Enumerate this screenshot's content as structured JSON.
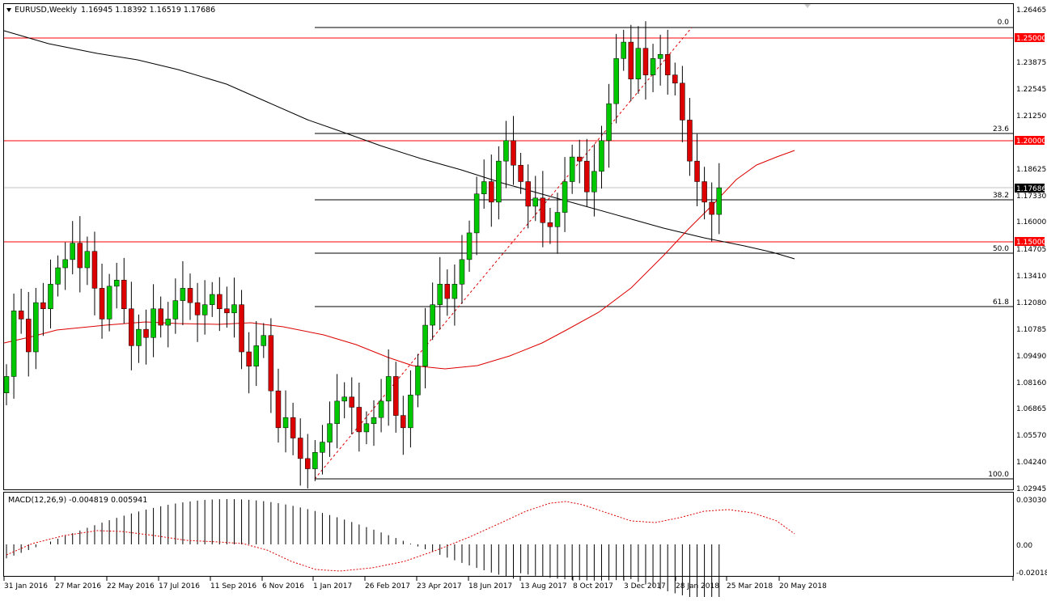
{
  "header": {
    "symbol": "EURUSD,Weekly",
    "ohlc": "1.16945 1.18392 1.16519 1.17686",
    "menu_icon": "triangle-down-icon"
  },
  "macd": {
    "label": "MACD(12,26,9) -0.004819 0.005941",
    "ticks": [
      "0.030308",
      "0.00",
      "-0.020187"
    ]
  },
  "price_axis": {
    "ticks": [
      "1.26465",
      "1.25000",
      "1.23875",
      "1.22545",
      "1.21250",
      "1.20000",
      "1.18625",
      "1.17686",
      "1.17330",
      "1.16000",
      "1.15000",
      "1.14705",
      "1.13410",
      "1.12080",
      "1.10785",
      "1.09490",
      "1.08160",
      "1.06865",
      "1.05570",
      "1.04240",
      "1.02945"
    ],
    "current_price": "1.17686"
  },
  "fib_levels": [
    "0.0",
    "23.6",
    "38.2",
    "50.0",
    "61.8",
    "100.0"
  ],
  "time_axis": [
    "31 Jan 2016",
    "27 Mar 2016",
    "22 May 2016",
    "17 Jul 2016",
    "11 Sep 2016",
    "6 Nov 2016",
    "1 Jan 2017",
    "26 Feb 2017",
    "23 Apr 2017",
    "18 Jun 2017",
    "13 Aug 2017",
    "8 Oct 2017",
    "3 Dec 2017",
    "28 Jan 2018",
    "25 Mar 2018",
    "20 May 2018"
  ],
  "colors": {
    "bull": "#00c800",
    "bear": "#dc0000",
    "ma_red": "#dc0000",
    "ma_black": "#000000",
    "level_red": "#ff0000"
  },
  "chart_data": {
    "type": "candlestick",
    "series_close_approx": [
      1.085,
      1.117,
      1.113,
      1.097,
      1.121,
      1.118,
      1.13,
      1.138,
      1.142,
      1.15,
      1.138,
      1.146,
      1.128,
      1.113,
      1.129,
      1.132,
      1.118,
      1.1,
      1.108,
      1.104,
      1.118,
      1.11,
      1.113,
      1.122,
      1.128,
      1.121,
      1.115,
      1.12,
      1.125,
      1.118,
      1.116,
      1.12,
      1.097,
      1.09,
      1.1,
      1.105,
      1.078,
      1.06,
      1.065,
      1.055,
      1.045,
      1.04,
      1.048,
      1.053,
      1.062,
      1.073,
      1.075,
      1.07,
      1.058,
      1.062,
      1.065,
      1.073,
      1.085,
      1.066,
      1.06,
      1.076,
      1.09,
      1.11,
      1.12,
      1.13,
      1.123,
      1.13,
      1.142,
      1.155,
      1.174,
      1.18,
      1.17,
      1.19,
      1.2,
      1.188,
      1.18,
      1.168,
      1.172,
      1.16,
      1.158,
      1.165,
      1.18,
      1.192,
      1.19,
      1.175,
      1.185,
      1.2,
      1.218,
      1.24,
      1.248,
      1.23,
      1.245,
      1.232,
      1.24,
      1.242,
      1.232,
      1.228,
      1.21,
      1.19,
      1.18,
      1.17,
      1.164,
      1.177
    ],
    "levels": [
      1.25,
      1.2,
      1.15
    ]
  }
}
